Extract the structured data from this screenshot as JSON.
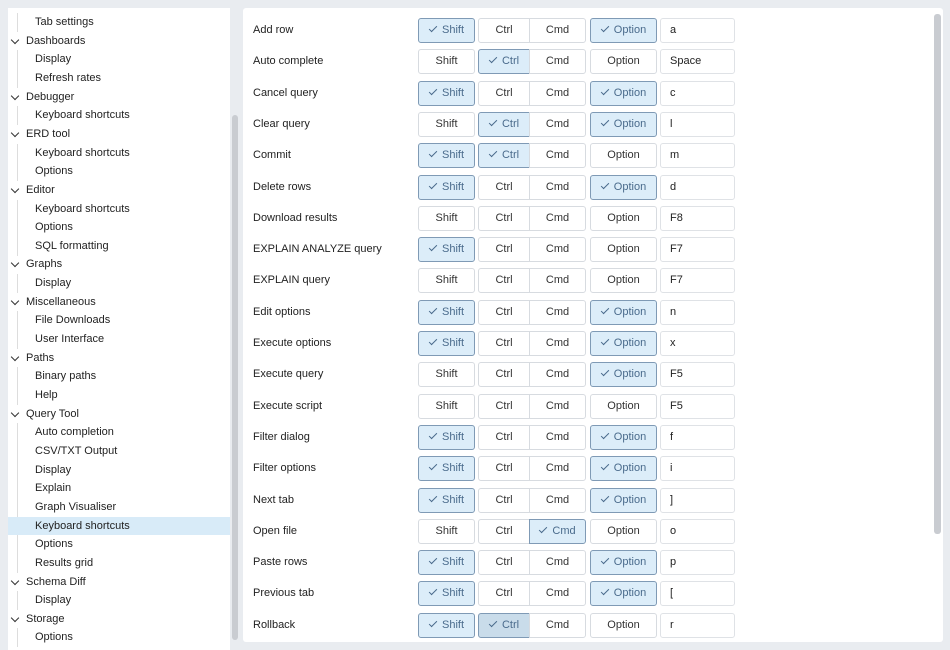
{
  "sidebar": {
    "items": [
      {
        "label": "Tab settings",
        "type": "leaf"
      },
      {
        "label": "Dashboards",
        "type": "group"
      },
      {
        "label": "Display",
        "type": "leaf"
      },
      {
        "label": "Refresh rates",
        "type": "leaf"
      },
      {
        "label": "Debugger",
        "type": "group"
      },
      {
        "label": "Keyboard shortcuts",
        "type": "leaf"
      },
      {
        "label": "ERD tool",
        "type": "group"
      },
      {
        "label": "Keyboard shortcuts",
        "type": "leaf"
      },
      {
        "label": "Options",
        "type": "leaf"
      },
      {
        "label": "Editor",
        "type": "group"
      },
      {
        "label": "Keyboard shortcuts",
        "type": "leaf"
      },
      {
        "label": "Options",
        "type": "leaf"
      },
      {
        "label": "SQL formatting",
        "type": "leaf"
      },
      {
        "label": "Graphs",
        "type": "group"
      },
      {
        "label": "Display",
        "type": "leaf"
      },
      {
        "label": "Miscellaneous",
        "type": "group"
      },
      {
        "label": "File Downloads",
        "type": "leaf"
      },
      {
        "label": "User Interface",
        "type": "leaf"
      },
      {
        "label": "Paths",
        "type": "group"
      },
      {
        "label": "Binary paths",
        "type": "leaf"
      },
      {
        "label": "Help",
        "type": "leaf"
      },
      {
        "label": "Query Tool",
        "type": "group"
      },
      {
        "label": "Auto completion",
        "type": "leaf"
      },
      {
        "label": "CSV/TXT Output",
        "type": "leaf"
      },
      {
        "label": "Display",
        "type": "leaf"
      },
      {
        "label": "Explain",
        "type": "leaf"
      },
      {
        "label": "Graph Visualiser",
        "type": "leaf"
      },
      {
        "label": "Keyboard shortcuts",
        "type": "leaf",
        "selected": true
      },
      {
        "label": "Options",
        "type": "leaf"
      },
      {
        "label": "Results grid",
        "type": "leaf"
      },
      {
        "label": "Schema Diff",
        "type": "group"
      },
      {
        "label": "Display",
        "type": "leaf"
      },
      {
        "label": "Storage",
        "type": "group"
      },
      {
        "label": "Options",
        "type": "leaf"
      }
    ]
  },
  "modifier_labels": {
    "shift": "Shift",
    "ctrl": "Ctrl",
    "cmd": "Cmd",
    "option": "Option"
  },
  "shortcuts": [
    {
      "label": "Add row",
      "shift": true,
      "ctrl": false,
      "cmd": false,
      "option": true,
      "key": "a"
    },
    {
      "label": "Auto complete",
      "shift": false,
      "ctrl": true,
      "cmd": false,
      "option": false,
      "key": "Space"
    },
    {
      "label": "Cancel query",
      "shift": true,
      "ctrl": false,
      "cmd": false,
      "option": true,
      "key": "c"
    },
    {
      "label": "Clear query",
      "shift": false,
      "ctrl": true,
      "cmd": false,
      "option": true,
      "key": "l"
    },
    {
      "label": "Commit",
      "shift": true,
      "ctrl": true,
      "cmd": false,
      "option": false,
      "key": "m"
    },
    {
      "label": "Delete rows",
      "shift": true,
      "ctrl": false,
      "cmd": false,
      "option": true,
      "key": "d"
    },
    {
      "label": "Download results",
      "shift": false,
      "ctrl": false,
      "cmd": false,
      "option": false,
      "key": "F8"
    },
    {
      "label": "EXPLAIN ANALYZE query",
      "shift": true,
      "ctrl": false,
      "cmd": false,
      "option": false,
      "key": "F7"
    },
    {
      "label": "EXPLAIN query",
      "shift": false,
      "ctrl": false,
      "cmd": false,
      "option": false,
      "key": "F7"
    },
    {
      "label": "Edit options",
      "shift": true,
      "ctrl": false,
      "cmd": false,
      "option": true,
      "key": "n"
    },
    {
      "label": "Execute options",
      "shift": true,
      "ctrl": false,
      "cmd": false,
      "option": true,
      "key": "x"
    },
    {
      "label": "Execute query",
      "shift": false,
      "ctrl": false,
      "cmd": false,
      "option": true,
      "key": "F5"
    },
    {
      "label": "Execute script",
      "shift": false,
      "ctrl": false,
      "cmd": false,
      "option": false,
      "key": "F5"
    },
    {
      "label": "Filter dialog",
      "shift": true,
      "ctrl": false,
      "cmd": false,
      "option": true,
      "key": "f"
    },
    {
      "label": "Filter options",
      "shift": true,
      "ctrl": false,
      "cmd": false,
      "option": true,
      "key": "i"
    },
    {
      "label": "Next tab",
      "shift": true,
      "ctrl": false,
      "cmd": false,
      "option": true,
      "key": "]"
    },
    {
      "label": "Open file",
      "shift": false,
      "ctrl": false,
      "cmd": true,
      "option": false,
      "key": "o"
    },
    {
      "label": "Paste rows",
      "shift": true,
      "ctrl": false,
      "cmd": false,
      "option": true,
      "key": "p"
    },
    {
      "label": "Previous tab",
      "shift": true,
      "ctrl": false,
      "cmd": false,
      "option": true,
      "key": "["
    },
    {
      "label": "Rollback",
      "shift": true,
      "ctrl": true,
      "cmd": false,
      "option": false,
      "key": "r"
    }
  ]
}
